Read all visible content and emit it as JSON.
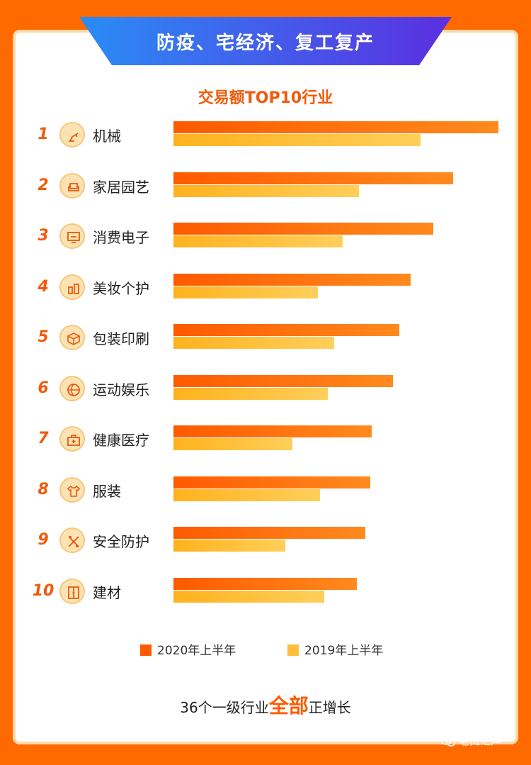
{
  "banner": {
    "title": "防疫、宅经济、复工复产"
  },
  "chart_data": {
    "type": "bar",
    "orientation": "horizontal",
    "title": "交易额TOP10行业",
    "categories": [
      "机械",
      "家居园艺",
      "消费电子",
      "美妆个护",
      "包装印刷",
      "运动娱乐",
      "健康医疗",
      "服装",
      "安全防护",
      "建材"
    ],
    "ranks": [
      "1",
      "2",
      "3",
      "4",
      "5",
      "6",
      "7",
      "8",
      "9",
      "10"
    ],
    "icons": [
      "robot-arm-icon",
      "sofa-icon",
      "monitor-icon",
      "cosmetics-icon",
      "box-icon",
      "ball-icon",
      "medical-kit-icon",
      "shirt-icon",
      "tools-icon",
      "cabinet-icon"
    ],
    "series": [
      {
        "name": "2020年上半年",
        "color": "#ff5a00",
        "values": [
          100,
          86,
          80,
          73,
          69.5,
          67.5,
          61,
          60.5,
          59,
          56.5
        ]
      },
      {
        "name": "2019年上半年",
        "color": "#ffbf3a",
        "values": [
          76,
          57,
          52,
          44.5,
          49.5,
          47.5,
          36.5,
          45,
          34.5,
          46.5
        ]
      }
    ],
    "xlim": [
      0,
      100
    ],
    "grid": false,
    "legend": "bottom"
  },
  "footnote": {
    "prefix": "36个一级行业",
    "highlight": "全部",
    "suffix": "正增长"
  },
  "watermark": {
    "text": "老挝之声"
  }
}
